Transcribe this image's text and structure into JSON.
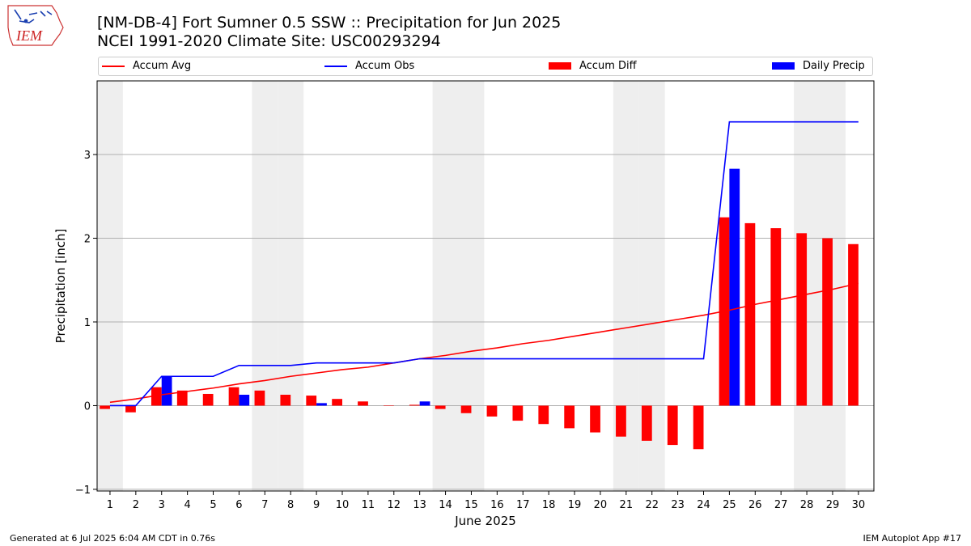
{
  "header": {
    "title_line1": "[NM-DB-4] Fort Sumner 0.5 SSW :: Precipitation for Jun 2025",
    "title_line2": "NCEI 1991-2020 Climate Site: USC00293294"
  },
  "logo": {
    "text": "IEM"
  },
  "footer": {
    "left": "Generated at 6 Jul 2025 6:04 AM CDT in 0.76s",
    "right": "IEM Autoplot App #17"
  },
  "colors": {
    "accum_avg": "#ff0000",
    "accum_obs": "#0000ff",
    "accum_diff": "#ff0000",
    "daily_precip": "#0000ff",
    "weekend_shade": "#eeeeee",
    "grid": "#b0b0b0"
  },
  "chart_data": {
    "type": "bar",
    "xlabel": "June 2025",
    "ylabel": "Precipitation [inch]",
    "ylim": [
      -1.02,
      3.88
    ],
    "yticks": [
      -1,
      0,
      1,
      2,
      3
    ],
    "grid": "horizontal",
    "legend_placement": "top",
    "days": [
      1,
      2,
      3,
      4,
      5,
      6,
      7,
      8,
      9,
      10,
      11,
      12,
      13,
      14,
      15,
      16,
      17,
      18,
      19,
      20,
      21,
      22,
      23,
      24,
      25,
      26,
      27,
      28,
      29,
      30
    ],
    "shaded_days": [
      1,
      7,
      8,
      14,
      15,
      21,
      22,
      28,
      29
    ],
    "series": [
      {
        "name": "Accum Avg",
        "kind": "line",
        "values": [
          0.04,
          0.08,
          0.13,
          0.17,
          0.21,
          0.26,
          0.3,
          0.35,
          0.39,
          0.43,
          0.46,
          0.51,
          0.56,
          0.6,
          0.65,
          0.69,
          0.74,
          0.78,
          0.83,
          0.88,
          0.93,
          0.98,
          1.03,
          1.08,
          1.14,
          1.21,
          1.27,
          1.33,
          1.39,
          1.46
        ]
      },
      {
        "name": "Accum Obs",
        "kind": "line",
        "values": [
          0.0,
          0.0,
          0.35,
          0.35,
          0.35,
          0.48,
          0.48,
          0.48,
          0.51,
          0.51,
          0.51,
          0.51,
          0.56,
          0.56,
          0.56,
          0.56,
          0.56,
          0.56,
          0.56,
          0.56,
          0.56,
          0.56,
          0.56,
          0.56,
          3.39,
          3.39,
          3.39,
          3.39,
          3.39,
          3.39
        ]
      },
      {
        "name": "Accum Diff",
        "kind": "bar",
        "values": [
          -0.04,
          -0.08,
          0.22,
          0.18,
          0.14,
          0.22,
          0.18,
          0.13,
          0.12,
          0.08,
          0.05,
          0.0,
          0.01,
          -0.04,
          -0.09,
          -0.13,
          -0.18,
          -0.22,
          -0.27,
          -0.32,
          -0.37,
          -0.42,
          -0.47,
          -0.52,
          2.25,
          2.18,
          2.12,
          2.06,
          2.0,
          1.93
        ]
      },
      {
        "name": "Daily Precip",
        "kind": "bar",
        "values": [
          0,
          0,
          0.35,
          0,
          0,
          0.13,
          0,
          0,
          0.03,
          0,
          0,
          0,
          0.05,
          0,
          0,
          0,
          0,
          0,
          0,
          0,
          0,
          0,
          0,
          0,
          2.83,
          0,
          0,
          0,
          0,
          0
        ]
      }
    ]
  }
}
